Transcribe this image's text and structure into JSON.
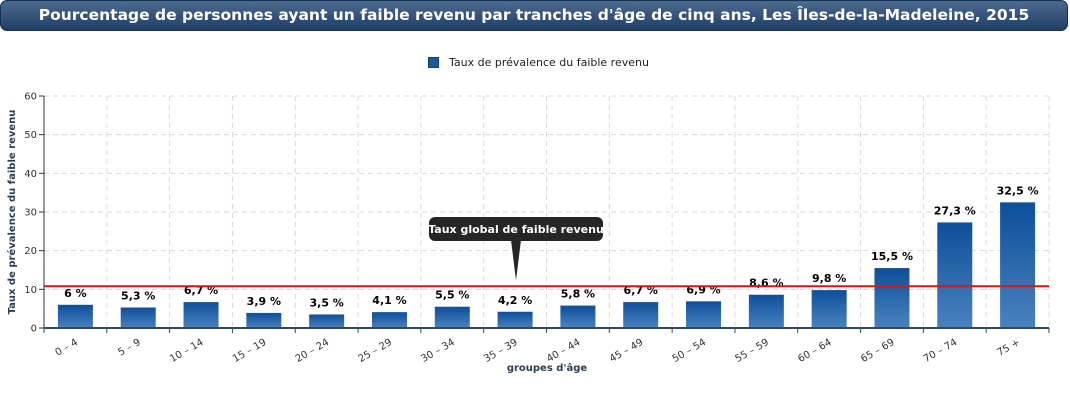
{
  "title": "Pourcentage de personnes ayant un faible revenu par tranches d'âge de cinq ans, Les Îles-de-la-Madeleine, 2015",
  "chart_data": {
    "type": "bar",
    "categories": [
      "0 – 4",
      "5 – 9",
      "10 – 14",
      "15 – 19",
      "20 – 24",
      "25 – 29",
      "30 – 34",
      "35 – 39",
      "40 – 44",
      "45 – 49",
      "50 – 54",
      "55 – 59",
      "60 – 64",
      "65 – 69",
      "70 – 74",
      "75 +"
    ],
    "values": [
      6,
      5.3,
      6.7,
      3.9,
      3.5,
      4.1,
      5.5,
      4.2,
      5.8,
      6.7,
      6.9,
      8.6,
      9.8,
      15.5,
      27.3,
      32.5
    ],
    "value_labels": [
      "6 %",
      "5,3 %",
      "6,7 %",
      "3,9 %",
      "3,5 %",
      "4,1 %",
      "5,5 %",
      "4,2 %",
      "5,8 %",
      "6,7 %",
      "6,9 %",
      "8,6 %",
      "9,8 %",
      "15,5 %",
      "27,3 %",
      "32,5 %"
    ],
    "series": [
      {
        "name": "Taux de prévalence du faible revenu",
        "color": "#1a5aa0"
      }
    ],
    "xlabel": "groupes d'âge",
    "ylabel": "Taux de prévalence du faible revenu",
    "ylim": [
      0,
      60
    ],
    "yticks": [
      0,
      10,
      20,
      30,
      40,
      50,
      60
    ],
    "grid": true,
    "legend_position": "top-center",
    "reference_line": {
      "value": 10.8,
      "label": "Taux global de faible revenu",
      "color": "#d0181c"
    }
  }
}
